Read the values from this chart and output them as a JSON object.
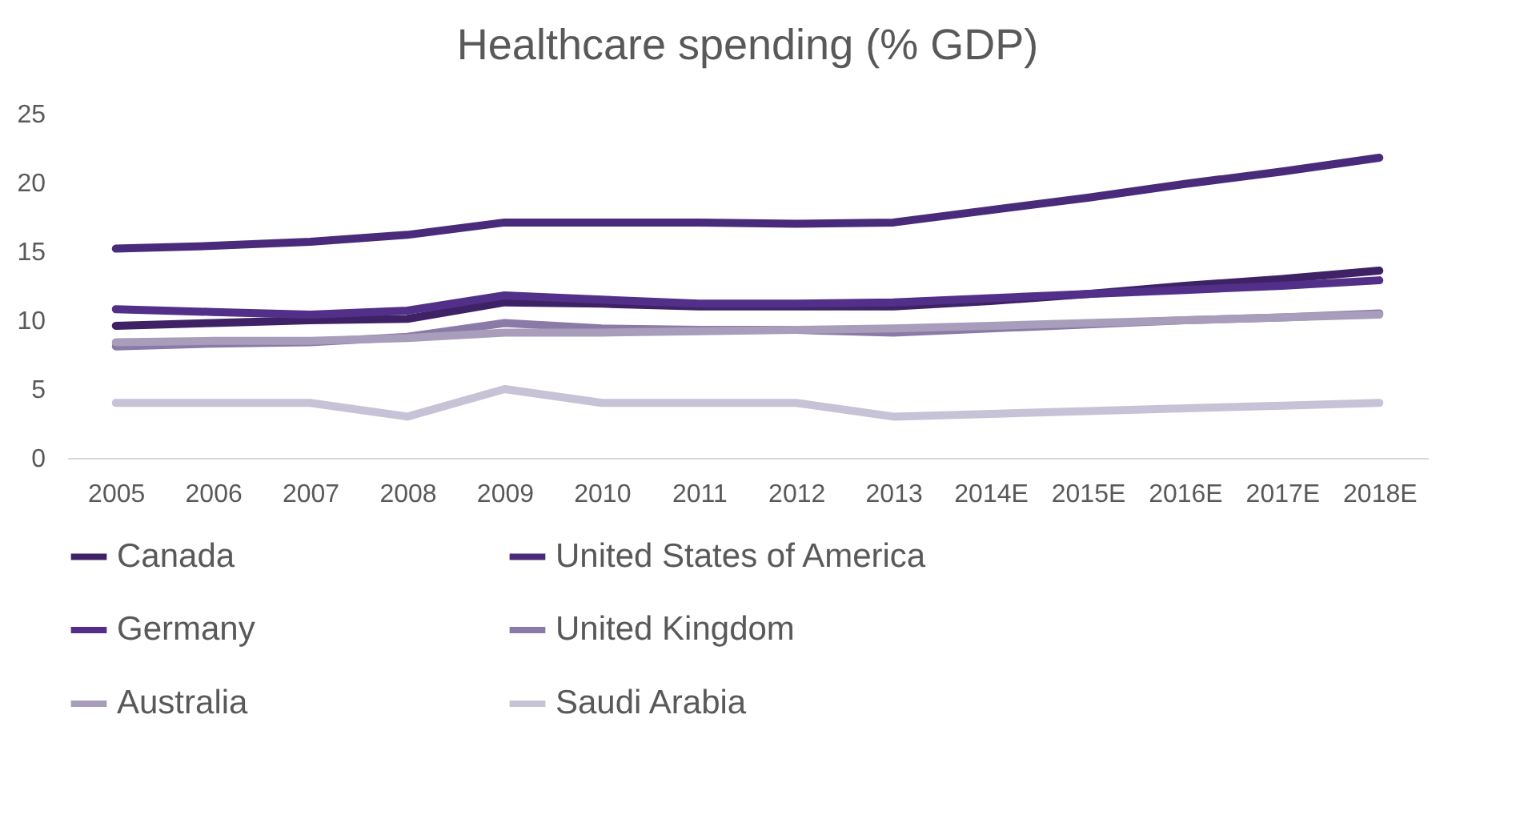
{
  "chart_data": {
    "type": "line",
    "title": "Healthcare spending (% GDP)",
    "categories": [
      "2005",
      "2006",
      "2007",
      "2008",
      "2009",
      "2010",
      "2011",
      "2012",
      "2013",
      "2014E",
      "2015E",
      "2016E",
      "2017E",
      "2018E"
    ],
    "series": [
      {
        "name": "Canada",
        "color": "#3f2266",
        "values": [
          9.6,
          9.8,
          10.0,
          10.1,
          11.3,
          11.2,
          11.0,
          11.0,
          11.0,
          11.4,
          11.9,
          12.5,
          13.0,
          13.6
        ]
      },
      {
        "name": "United States of America",
        "color": "#4a2a7a",
        "values": [
          15.2,
          15.4,
          15.7,
          16.2,
          17.1,
          17.1,
          17.1,
          17.0,
          17.1,
          18.0,
          18.9,
          19.9,
          20.8,
          21.8
        ]
      },
      {
        "name": "Germany",
        "color": "#52308a",
        "values": [
          10.8,
          10.6,
          10.4,
          10.7,
          11.8,
          11.5,
          11.2,
          11.2,
          11.3,
          11.6,
          11.9,
          12.2,
          12.5,
          12.9
        ]
      },
      {
        "name": "United Kingdom",
        "color": "#8a7aa8",
        "values": [
          8.1,
          8.3,
          8.4,
          8.8,
          9.8,
          9.4,
          9.3,
          9.3,
          9.1,
          9.4,
          9.7,
          10.0,
          10.2,
          10.5
        ]
      },
      {
        "name": "Australia",
        "color": "#a89dbb",
        "values": [
          8.4,
          8.5,
          8.5,
          8.7,
          9.1,
          9.1,
          9.2,
          9.3,
          9.4,
          9.6,
          9.8,
          10.0,
          10.2,
          10.4
        ]
      },
      {
        "name": "Saudi Arabia",
        "color": "#c8c2d6",
        "values": [
          4.0,
          4.0,
          4.0,
          3.0,
          5.0,
          4.0,
          4.0,
          4.0,
          3.0,
          3.2,
          3.4,
          3.6,
          3.8,
          4.0
        ]
      }
    ],
    "ylim": [
      0,
      25
    ],
    "yticks": [
      0,
      5,
      10,
      15,
      20,
      25
    ],
    "grid": false,
    "legend": "bottom",
    "marker": "none",
    "line_style": "solid"
  }
}
